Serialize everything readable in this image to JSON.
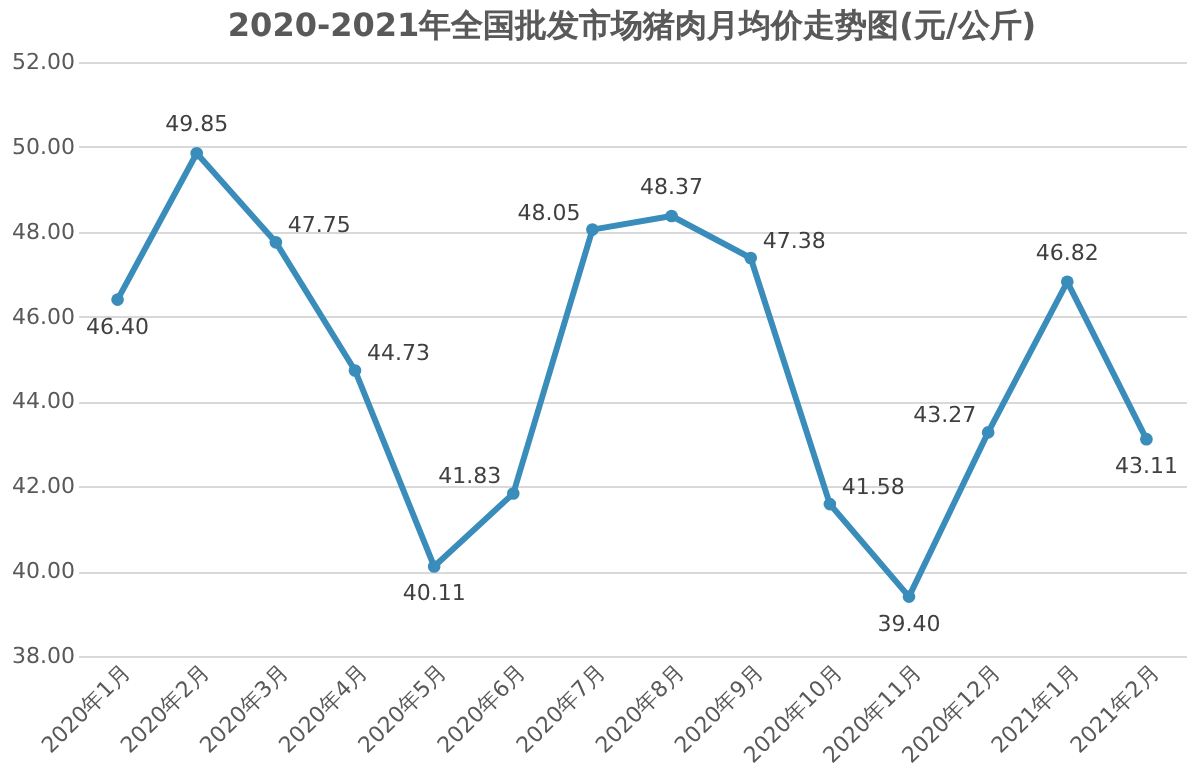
{
  "chart_data": {
    "type": "line",
    "title": "2020-2021年全国批发市场猪肉月均价走势图(元/公斤)",
    "categories": [
      "2020年1月",
      "2020年2月",
      "2020年3月",
      "2020年4月",
      "2020年5月",
      "2020年6月",
      "2020年7月",
      "2020年8月",
      "2020年9月",
      "2020年10月",
      "2020年11月",
      "2020年12月",
      "2021年1月",
      "2021年2月"
    ],
    "series": [
      {
        "color": "#3a8dbb",
        "values": [
          46.4,
          49.85,
          47.75,
          44.73,
          40.11,
          41.83,
          48.05,
          48.37,
          47.38,
          41.58,
          39.4,
          43.27,
          46.82,
          43.11
        ],
        "value_labels": [
          "46.40",
          "49.85",
          "47.75",
          "44.73",
          "40.11",
          "41.83",
          "48.05",
          "48.37",
          "47.38",
          "41.58",
          "39.40",
          "43.27",
          "46.82",
          "43.11"
        ]
      }
    ],
    "ylim": [
      38,
      52
    ],
    "yticks": [
      {
        "value": 38,
        "label": "38.00"
      },
      {
        "value": 40,
        "label": "40.00"
      },
      {
        "value": 42,
        "label": "42.00"
      },
      {
        "value": 44,
        "label": "44.00"
      },
      {
        "value": 46,
        "label": "46.00"
      },
      {
        "value": 48,
        "label": "48.00"
      },
      {
        "value": 50,
        "label": "50.00"
      },
      {
        "value": 52,
        "label": "52.00"
      }
    ],
    "grid": "y",
    "marker": "circle",
    "line_style": "solid"
  }
}
